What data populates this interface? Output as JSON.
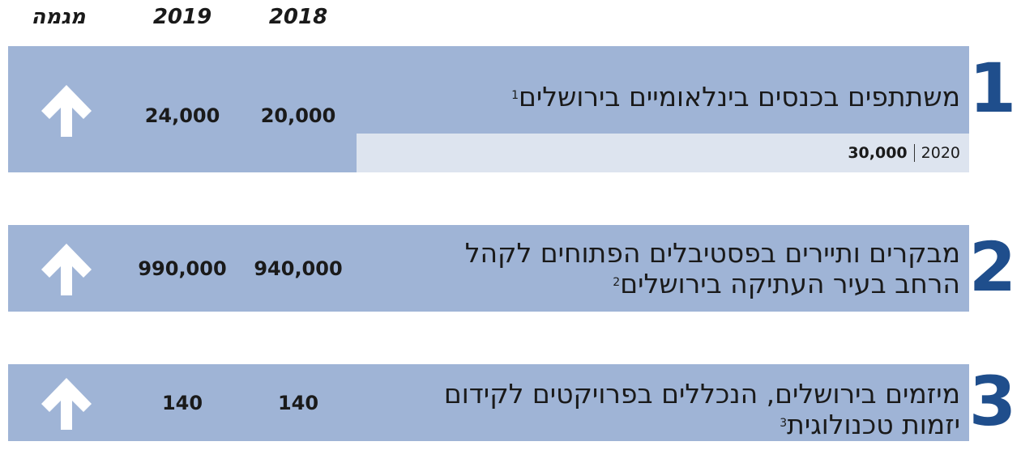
{
  "header": {
    "trend": "מגמה",
    "col_2019": "2019",
    "col_2018": "2018"
  },
  "rows": [
    {
      "number": "1",
      "lines": [
        "משתתפים בכנסים בינלאומיים בירושלים"
      ],
      "note": "1",
      "value_2018": "20,000",
      "value_2019": "24,000",
      "target": {
        "year": "2020",
        "value": "30,000"
      }
    },
    {
      "number": "2",
      "lines": [
        "מבקרים ותיירים בפסטיבלים הפתוחים לקהל",
        "הרחב בעיר העתיקה בירושלים"
      ],
      "note": "2",
      "value_2018": "940,000",
      "value_2019": "990,000"
    },
    {
      "number": "3",
      "lines": [
        "מיזמים בירושלים, הנכללים בפרויקטים לקידום",
        "יזמות טכנולוגית"
      ],
      "note": "3",
      "value_2018": "140",
      "value_2019": "140"
    }
  ]
}
